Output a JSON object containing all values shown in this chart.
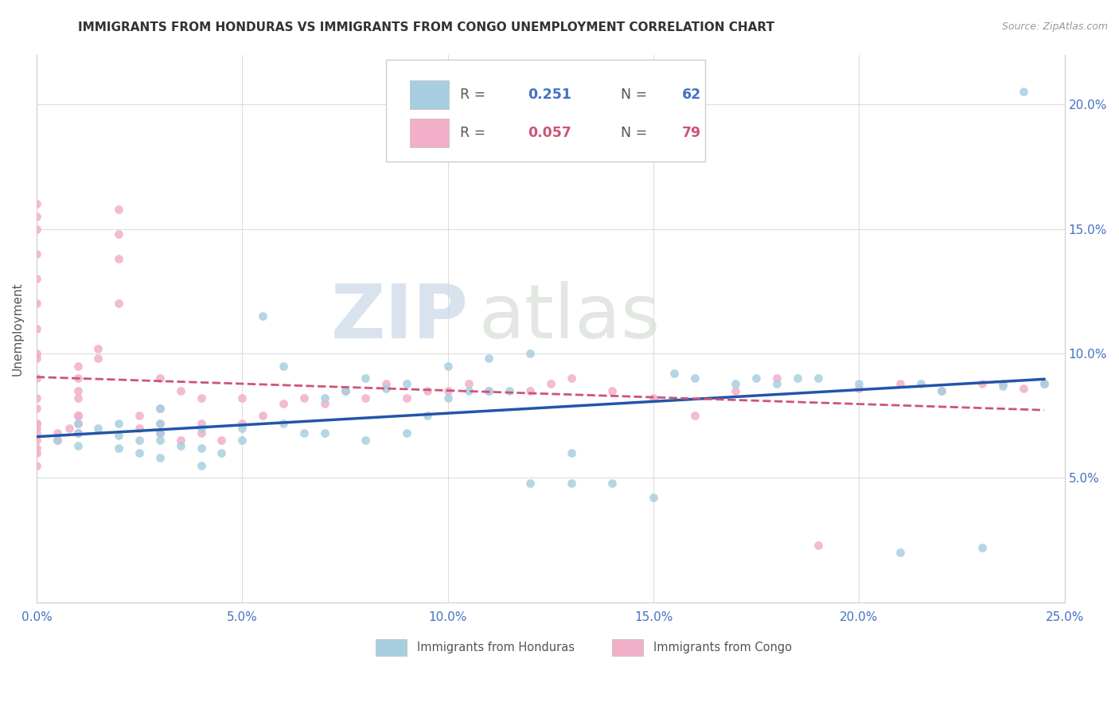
{
  "title": "IMMIGRANTS FROM HONDURAS VS IMMIGRANTS FROM CONGO UNEMPLOYMENT CORRELATION CHART",
  "source": "Source: ZipAtlas.com",
  "ylabel": "Unemployment",
  "xlim": [
    0.0,
    0.25
  ],
  "ylim": [
    0.0,
    0.22
  ],
  "xtick_labels": [
    "0.0%",
    "5.0%",
    "10.0%",
    "15.0%",
    "20.0%",
    "25.0%"
  ],
  "xtick_values": [
    0.0,
    0.05,
    0.1,
    0.15,
    0.2,
    0.25
  ],
  "ytick_labels": [
    "5.0%",
    "10.0%",
    "15.0%",
    "20.0%"
  ],
  "ytick_values": [
    0.05,
    0.1,
    0.15,
    0.2
  ],
  "legend_r1": "0.251",
  "legend_n1": "62",
  "legend_r2": "0.057",
  "legend_n2": "79",
  "color_honduras": "#a8cfe0",
  "color_congo": "#f2b0c8",
  "trend_color_honduras": "#2255aa",
  "trend_color_congo": "#cc5577",
  "watermark_zip": "ZIP",
  "watermark_atlas": "atlas",
  "honduras_x": [
    0.005,
    0.01,
    0.01,
    0.01,
    0.015,
    0.02,
    0.02,
    0.02,
    0.025,
    0.025,
    0.03,
    0.03,
    0.03,
    0.03,
    0.03,
    0.035,
    0.04,
    0.04,
    0.04,
    0.045,
    0.05,
    0.05,
    0.055,
    0.06,
    0.06,
    0.065,
    0.07,
    0.07,
    0.075,
    0.08,
    0.08,
    0.085,
    0.09,
    0.09,
    0.095,
    0.1,
    0.1,
    0.105,
    0.11,
    0.11,
    0.115,
    0.12,
    0.12,
    0.13,
    0.13,
    0.14,
    0.15,
    0.155,
    0.16,
    0.17,
    0.175,
    0.18,
    0.185,
    0.19,
    0.2,
    0.21,
    0.215,
    0.22,
    0.23,
    0.235,
    0.24,
    0.245
  ],
  "honduras_y": [
    0.065,
    0.063,
    0.068,
    0.072,
    0.07,
    0.062,
    0.067,
    0.072,
    0.065,
    0.06,
    0.058,
    0.065,
    0.068,
    0.072,
    0.078,
    0.063,
    0.055,
    0.062,
    0.07,
    0.06,
    0.065,
    0.07,
    0.115,
    0.072,
    0.095,
    0.068,
    0.068,
    0.082,
    0.085,
    0.065,
    0.09,
    0.086,
    0.068,
    0.088,
    0.075,
    0.082,
    0.095,
    0.085,
    0.085,
    0.098,
    0.085,
    0.048,
    0.1,
    0.06,
    0.048,
    0.048,
    0.042,
    0.092,
    0.09,
    0.088,
    0.09,
    0.088,
    0.09,
    0.09,
    0.088,
    0.02,
    0.088,
    0.085,
    0.022,
    0.087,
    0.205,
    0.088
  ],
  "congo_x": [
    0.0,
    0.0,
    0.0,
    0.0,
    0.0,
    0.0,
    0.0,
    0.0,
    0.0,
    0.0,
    0.0,
    0.0,
    0.0,
    0.0,
    0.0,
    0.0,
    0.0,
    0.0,
    0.0,
    0.0,
    0.005,
    0.005,
    0.008,
    0.01,
    0.01,
    0.01,
    0.01,
    0.01,
    0.01,
    0.01,
    0.01,
    0.015,
    0.015,
    0.02,
    0.02,
    0.02,
    0.02,
    0.025,
    0.025,
    0.03,
    0.03,
    0.03,
    0.03,
    0.035,
    0.035,
    0.04,
    0.04,
    0.04,
    0.045,
    0.05,
    0.05,
    0.055,
    0.06,
    0.065,
    0.07,
    0.075,
    0.08,
    0.085,
    0.09,
    0.095,
    0.1,
    0.105,
    0.11,
    0.12,
    0.125,
    0.13,
    0.14,
    0.15,
    0.16,
    0.17,
    0.18,
    0.19,
    0.2,
    0.21,
    0.22,
    0.23,
    0.235,
    0.24,
    0.245
  ],
  "congo_y": [
    0.072,
    0.068,
    0.065,
    0.07,
    0.06,
    0.062,
    0.055,
    0.072,
    0.078,
    0.082,
    0.09,
    0.098,
    0.1,
    0.11,
    0.12,
    0.13,
    0.14,
    0.15,
    0.155,
    0.16,
    0.065,
    0.068,
    0.07,
    0.068,
    0.072,
    0.075,
    0.075,
    0.082,
    0.085,
    0.09,
    0.095,
    0.098,
    0.102,
    0.12,
    0.138,
    0.148,
    0.158,
    0.07,
    0.075,
    0.068,
    0.072,
    0.078,
    0.09,
    0.065,
    0.085,
    0.068,
    0.072,
    0.082,
    0.065,
    0.072,
    0.082,
    0.075,
    0.08,
    0.082,
    0.08,
    0.085,
    0.082,
    0.088,
    0.082,
    0.085,
    0.085,
    0.088,
    0.085,
    0.085,
    0.088,
    0.09,
    0.085,
    0.082,
    0.075,
    0.085,
    0.09,
    0.023,
    0.086,
    0.088,
    0.085,
    0.088,
    0.088,
    0.086,
    0.088
  ]
}
